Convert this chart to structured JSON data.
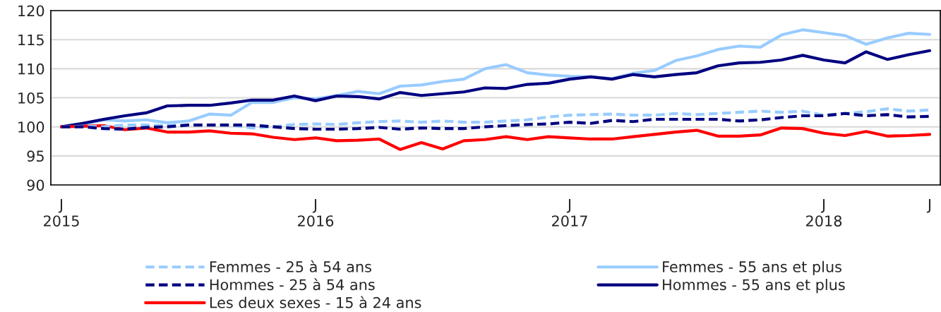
{
  "chart_data": {
    "type": "line",
    "categories": [
      "J\n2015",
      null,
      null,
      null,
      null,
      null,
      null,
      null,
      null,
      null,
      null,
      null,
      "J\n2016",
      null,
      null,
      null,
      null,
      null,
      null,
      null,
      null,
      null,
      null,
      null,
      "J\n2017",
      null,
      null,
      null,
      null,
      null,
      null,
      null,
      null,
      null,
      null,
      null,
      "J\n2018",
      null,
      null,
      null,
      null,
      "J"
    ],
    "series": [
      {
        "name": "Femmes - 25 à 54 ans",
        "color": "#99ccff",
        "line_style": "dashed",
        "values": [
          100,
          100.1,
          100,
          100.3,
          100.3,
          100.2,
          100.3,
          100.3,
          100.3,
          99.8,
          100,
          100.4,
          100.5,
          100.4,
          100.7,
          100.9,
          101,
          100.8,
          101,
          100.8,
          100.8,
          101,
          101.2,
          101.7,
          102,
          102.1,
          102.2,
          102,
          102,
          102.3,
          102.1,
          102.3,
          102.5,
          102.7,
          102.5,
          102.7,
          102,
          102.3,
          102.6,
          103.1,
          102.7,
          102.9
        ]
      },
      {
        "name": "Femmes - 55 ans et plus",
        "color": "#99ccff",
        "line_style": "solid",
        "values": [
          100,
          100.4,
          101.2,
          101,
          101.2,
          100.7,
          101,
          102.2,
          102,
          104.2,
          104.2,
          105,
          104.8,
          105.4,
          106.1,
          105.7,
          107,
          107.2,
          107.8,
          108.2,
          110,
          110.7,
          109.3,
          108.9,
          108.7,
          108.6,
          108.3,
          109.2,
          109.7,
          111.4,
          112.2,
          113.3,
          113.9,
          113.7,
          115.8,
          116.7,
          116.2,
          115.7,
          114.2,
          115.3,
          116.1,
          115.9
        ]
      },
      {
        "name": "Hommes - 25 à 54 ans",
        "color": "#000080",
        "line_style": "dashed",
        "values": [
          100,
          100,
          99.7,
          99.6,
          99.9,
          100,
          100.3,
          100.3,
          100.3,
          100.3,
          100,
          99.7,
          99.6,
          99.6,
          99.7,
          99.9,
          99.6,
          99.8,
          99.7,
          99.7,
          100,
          100.2,
          100.4,
          100.5,
          100.8,
          100.6,
          101.1,
          100.9,
          101.3,
          101.3,
          101.3,
          101.3,
          101,
          101.2,
          101.6,
          101.9,
          101.9,
          102.3,
          101.9,
          102.1,
          101.7,
          101.8
        ]
      },
      {
        "name": "Hommes - 55 ans et plus",
        "color": "#000080",
        "line_style": "solid",
        "values": [
          100,
          100.6,
          101.3,
          101.9,
          102.4,
          103.6,
          103.7,
          103.7,
          104.1,
          104.6,
          104.6,
          105.3,
          104.5,
          105.3,
          105.2,
          104.8,
          105.9,
          105.4,
          105.7,
          106,
          106.7,
          106.6,
          107.3,
          107.5,
          108.2,
          108.6,
          108.2,
          109,
          108.6,
          109,
          109.3,
          110.5,
          111,
          111.1,
          111.5,
          112.3,
          111.5,
          111,
          112.9,
          111.6,
          112.4,
          113.1
        ]
      },
      {
        "name": "Les deux sexes - 15 à 24 ans",
        "color": "#ff0000",
        "line_style": "solid",
        "values": [
          100,
          100.1,
          100.2,
          99.5,
          99.8,
          99.1,
          99.1,
          99.3,
          98.9,
          98.8,
          98.2,
          97.8,
          98.1,
          97.6,
          97.7,
          97.9,
          96.1,
          97.3,
          96.2,
          97.6,
          97.8,
          98.3,
          97.8,
          98.3,
          98.1,
          97.9,
          97.9,
          98.3,
          98.7,
          99.1,
          99.4,
          98.4,
          98.4,
          98.6,
          99.8,
          99.7,
          98.9,
          98.5,
          99.2,
          98.4,
          98.5,
          98.7
        ]
      }
    ],
    "ylim": [
      90,
      120
    ],
    "yticks": [
      90,
      95,
      100,
      105,
      110,
      115,
      120
    ],
    "grid": "y",
    "legend": "bottom"
  }
}
